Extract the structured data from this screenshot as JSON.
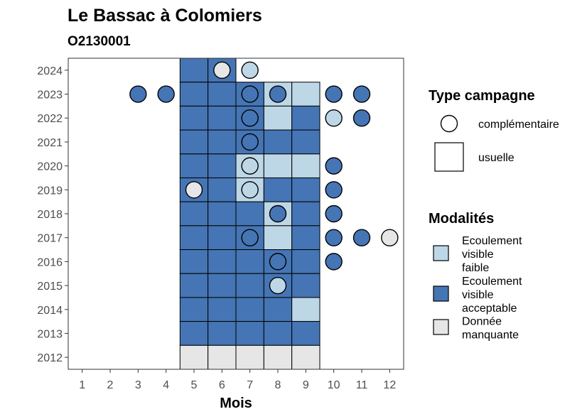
{
  "chart_data": {
    "type": "heatmap",
    "title": "Le Bassac à Colomiers",
    "subtitle": "O2130001",
    "xlabel": "Mois",
    "ylabel": "",
    "x_ticks": [
      "1",
      "2",
      "3",
      "4",
      "5",
      "6",
      "7",
      "8",
      "9",
      "10",
      "11",
      "12"
    ],
    "y_ticks": [
      "2012",
      "2013",
      "2014",
      "2015",
      "2016",
      "2017",
      "2018",
      "2019",
      "2020",
      "2021",
      "2022",
      "2023",
      "2024"
    ],
    "xlim": [
      0.5,
      12.5
    ],
    "ylim": [
      2011.5,
      2024.5
    ],
    "grid": false,
    "legend_position": "right",
    "colors": {
      "Ecoulement visible faible": "#bdd7e7",
      "Ecoulement visible acceptable": "#4575b4",
      "Donnée manquante": "#e6e6e6"
    },
    "legend": {
      "shape_title": "Type campagne",
      "shape_items": [
        {
          "label": "complémentaire",
          "shape": "circle"
        },
        {
          "label": "usuelle",
          "shape": "square"
        }
      ],
      "fill_title": "Modalités",
      "fill_items": [
        {
          "label_lines": [
            "Ecoulement",
            "visible",
            "faible"
          ],
          "value": "Ecoulement visible faible"
        },
        {
          "label_lines": [
            "Ecoulement",
            "visible",
            "acceptable"
          ],
          "value": "Ecoulement visible acceptable"
        },
        {
          "label_lines": [
            "Donnée",
            "manquante"
          ],
          "value": "Donnée manquante"
        }
      ]
    },
    "series": [
      {
        "name": "usuelle",
        "shape": "square",
        "points": [
          {
            "x": 5,
            "y": 2024,
            "v": "Ecoulement visible acceptable"
          },
          {
            "x": 6,
            "y": 2024,
            "v": "Ecoulement visible acceptable"
          },
          {
            "x": 5,
            "y": 2023,
            "v": "Ecoulement visible acceptable"
          },
          {
            "x": 6,
            "y": 2023,
            "v": "Ecoulement visible acceptable"
          },
          {
            "x": 7,
            "y": 2023,
            "v": "Ecoulement visible acceptable"
          },
          {
            "x": 8,
            "y": 2023,
            "v": "Ecoulement visible faible"
          },
          {
            "x": 9,
            "y": 2023,
            "v": "Ecoulement visible faible"
          },
          {
            "x": 5,
            "y": 2022,
            "v": "Ecoulement visible acceptable"
          },
          {
            "x": 6,
            "y": 2022,
            "v": "Ecoulement visible acceptable"
          },
          {
            "x": 7,
            "y": 2022,
            "v": "Ecoulement visible acceptable"
          },
          {
            "x": 8,
            "y": 2022,
            "v": "Ecoulement visible faible"
          },
          {
            "x": 9,
            "y": 2022,
            "v": "Ecoulement visible acceptable"
          },
          {
            "x": 5,
            "y": 2021,
            "v": "Ecoulement visible acceptable"
          },
          {
            "x": 6,
            "y": 2021,
            "v": "Ecoulement visible acceptable"
          },
          {
            "x": 7,
            "y": 2021,
            "v": "Ecoulement visible acceptable"
          },
          {
            "x": 8,
            "y": 2021,
            "v": "Ecoulement visible acceptable"
          },
          {
            "x": 9,
            "y": 2021,
            "v": "Ecoulement visible acceptable"
          },
          {
            "x": 5,
            "y": 2020,
            "v": "Ecoulement visible acceptable"
          },
          {
            "x": 6,
            "y": 2020,
            "v": "Ecoulement visible acceptable"
          },
          {
            "x": 7,
            "y": 2020,
            "v": "Ecoulement visible faible"
          },
          {
            "x": 8,
            "y": 2020,
            "v": "Ecoulement visible faible"
          },
          {
            "x": 9,
            "y": 2020,
            "v": "Ecoulement visible faible"
          },
          {
            "x": 5,
            "y": 2019,
            "v": "Ecoulement visible acceptable"
          },
          {
            "x": 6,
            "y": 2019,
            "v": "Ecoulement visible acceptable"
          },
          {
            "x": 7,
            "y": 2019,
            "v": "Ecoulement visible faible"
          },
          {
            "x": 8,
            "y": 2019,
            "v": "Ecoulement visible acceptable"
          },
          {
            "x": 9,
            "y": 2019,
            "v": "Ecoulement visible acceptable"
          },
          {
            "x": 5,
            "y": 2018,
            "v": "Ecoulement visible acceptable"
          },
          {
            "x": 6,
            "y": 2018,
            "v": "Ecoulement visible acceptable"
          },
          {
            "x": 7,
            "y": 2018,
            "v": "Ecoulement visible acceptable"
          },
          {
            "x": 8,
            "y": 2018,
            "v": "Ecoulement visible faible"
          },
          {
            "x": 9,
            "y": 2018,
            "v": "Ecoulement visible acceptable"
          },
          {
            "x": 5,
            "y": 2017,
            "v": "Ecoulement visible acceptable"
          },
          {
            "x": 6,
            "y": 2017,
            "v": "Ecoulement visible acceptable"
          },
          {
            "x": 7,
            "y": 2017,
            "v": "Ecoulement visible acceptable"
          },
          {
            "x": 8,
            "y": 2017,
            "v": "Ecoulement visible faible"
          },
          {
            "x": 9,
            "y": 2017,
            "v": "Ecoulement visible acceptable"
          },
          {
            "x": 5,
            "y": 2016,
            "v": "Ecoulement visible acceptable"
          },
          {
            "x": 6,
            "y": 2016,
            "v": "Ecoulement visible acceptable"
          },
          {
            "x": 7,
            "y": 2016,
            "v": "Ecoulement visible acceptable"
          },
          {
            "x": 8,
            "y": 2016,
            "v": "Ecoulement visible acceptable"
          },
          {
            "x": 9,
            "y": 2016,
            "v": "Ecoulement visible acceptable"
          },
          {
            "x": 5,
            "y": 2015,
            "v": "Ecoulement visible acceptable"
          },
          {
            "x": 6,
            "y": 2015,
            "v": "Ecoulement visible acceptable"
          },
          {
            "x": 7,
            "y": 2015,
            "v": "Ecoulement visible acceptable"
          },
          {
            "x": 8,
            "y": 2015,
            "v": "Ecoulement visible acceptable"
          },
          {
            "x": 9,
            "y": 2015,
            "v": "Ecoulement visible acceptable"
          },
          {
            "x": 5,
            "y": 2014,
            "v": "Ecoulement visible acceptable"
          },
          {
            "x": 6,
            "y": 2014,
            "v": "Ecoulement visible acceptable"
          },
          {
            "x": 7,
            "y": 2014,
            "v": "Ecoulement visible acceptable"
          },
          {
            "x": 8,
            "y": 2014,
            "v": "Ecoulement visible acceptable"
          },
          {
            "x": 9,
            "y": 2014,
            "v": "Ecoulement visible faible"
          },
          {
            "x": 5,
            "y": 2013,
            "v": "Ecoulement visible acceptable"
          },
          {
            "x": 6,
            "y": 2013,
            "v": "Ecoulement visible acceptable"
          },
          {
            "x": 7,
            "y": 2013,
            "v": "Ecoulement visible acceptable"
          },
          {
            "x": 8,
            "y": 2013,
            "v": "Ecoulement visible acceptable"
          },
          {
            "x": 9,
            "y": 2013,
            "v": "Ecoulement visible acceptable"
          },
          {
            "x": 5,
            "y": 2012,
            "v": "Donnée manquante"
          },
          {
            "x": 6,
            "y": 2012,
            "v": "Donnée manquante"
          },
          {
            "x": 7,
            "y": 2012,
            "v": "Donnée manquante"
          },
          {
            "x": 8,
            "y": 2012,
            "v": "Donnée manquante"
          },
          {
            "x": 9,
            "y": 2012,
            "v": "Donnée manquante"
          }
        ]
      },
      {
        "name": "complémentaire",
        "shape": "circle",
        "points": [
          {
            "x": 6,
            "y": 2024,
            "v": "Donnée manquante"
          },
          {
            "x": 7,
            "y": 2024,
            "v": "Ecoulement visible faible"
          },
          {
            "x": 3,
            "y": 2023,
            "v": "Ecoulement visible acceptable"
          },
          {
            "x": 4,
            "y": 2023,
            "v": "Ecoulement visible acceptable"
          },
          {
            "x": 7,
            "y": 2023,
            "v": "Ecoulement visible acceptable"
          },
          {
            "x": 8,
            "y": 2023,
            "v": "Ecoulement visible acceptable"
          },
          {
            "x": 10,
            "y": 2023,
            "v": "Ecoulement visible acceptable"
          },
          {
            "x": 11,
            "y": 2023,
            "v": "Ecoulement visible acceptable"
          },
          {
            "x": 7,
            "y": 2022,
            "v": "Ecoulement visible acceptable"
          },
          {
            "x": 10,
            "y": 2022,
            "v": "Ecoulement visible faible"
          },
          {
            "x": 11,
            "y": 2022,
            "v": "Ecoulement visible acceptable"
          },
          {
            "x": 7,
            "y": 2021,
            "v": "Ecoulement visible acceptable"
          },
          {
            "x": 7,
            "y": 2020,
            "v": "Ecoulement visible faible"
          },
          {
            "x": 10,
            "y": 2020,
            "v": "Ecoulement visible acceptable"
          },
          {
            "x": 5,
            "y": 2019,
            "v": "Donnée manquante"
          },
          {
            "x": 7,
            "y": 2019,
            "v": "Ecoulement visible faible"
          },
          {
            "x": 10,
            "y": 2019,
            "v": "Ecoulement visible acceptable"
          },
          {
            "x": 8,
            "y": 2018,
            "v": "Ecoulement visible acceptable"
          },
          {
            "x": 10,
            "y": 2018,
            "v": "Ecoulement visible acceptable"
          },
          {
            "x": 7,
            "y": 2017,
            "v": "Ecoulement visible acceptable"
          },
          {
            "x": 10,
            "y": 2017,
            "v": "Ecoulement visible acceptable"
          },
          {
            "x": 11,
            "y": 2017,
            "v": "Ecoulement visible acceptable"
          },
          {
            "x": 12,
            "y": 2017,
            "v": "Donnée manquante"
          },
          {
            "x": 8,
            "y": 2016,
            "v": "Ecoulement visible acceptable"
          },
          {
            "x": 10,
            "y": 2016,
            "v": "Ecoulement visible acceptable"
          },
          {
            "x": 8,
            "y": 2015,
            "v": "Ecoulement visible faible"
          }
        ]
      }
    ]
  }
}
